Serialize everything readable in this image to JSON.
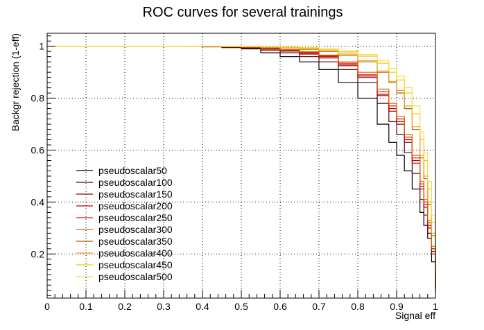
{
  "chart_data": {
    "type": "line",
    "title": "ROC curves for several trainings",
    "xlabel": "Signal eff",
    "ylabel": "Backgr rejection (1-eff)",
    "xlim": [
      0,
      1
    ],
    "ylim": [
      0.03,
      1.05
    ],
    "grid": true,
    "legend_position": "bottom-left",
    "x_ticks": [
      0,
      0.1,
      0.2,
      0.3,
      0.4,
      0.5,
      0.6,
      0.7,
      0.8,
      0.9,
      1
    ],
    "x_tick_labels": [
      "0",
      "0.1",
      "0.2",
      "0.3",
      "0.4",
      "0.5",
      "0.6",
      "0.7",
      "0.8",
      "0.9",
      "1"
    ],
    "y_ticks": [
      0.2,
      0.4,
      0.6,
      0.8,
      1
    ],
    "y_tick_labels": [
      "0.2",
      "0.4",
      "0.6",
      "0.8",
      "1"
    ],
    "x": [
      0.35,
      0.4,
      0.45,
      0.5,
      0.55,
      0.6,
      0.65,
      0.7,
      0.75,
      0.8,
      0.85,
      0.88,
      0.9,
      0.92,
      0.94,
      0.96,
      0.97,
      0.98,
      0.99,
      1.0
    ],
    "series": [
      {
        "name": "pseudoscalar50",
        "color": "#000000",
        "values": [
          1.0,
          0.998,
          0.995,
          0.99,
          0.975,
          0.96,
          0.94,
          0.91,
          0.86,
          0.8,
          0.7,
          0.63,
          0.58,
          0.52,
          0.45,
          0.36,
          0.31,
          0.26,
          0.17,
          0.05
        ]
      },
      {
        "name": "pseudoscalar100",
        "color": "#5a0000",
        "values": [
          1.0,
          0.999,
          0.997,
          0.993,
          0.985,
          0.975,
          0.96,
          0.94,
          0.91,
          0.86,
          0.78,
          0.71,
          0.66,
          0.59,
          0.51,
          0.41,
          0.35,
          0.28,
          0.2,
          0.06
        ]
      },
      {
        "name": "pseudoscalar150",
        "color": "#8c0000",
        "values": [
          1.0,
          0.999,
          0.998,
          0.995,
          0.989,
          0.981,
          0.97,
          0.955,
          0.925,
          0.88,
          0.81,
          0.75,
          0.7,
          0.63,
          0.55,
          0.45,
          0.38,
          0.3,
          0.21,
          0.07
        ]
      },
      {
        "name": "pseudoscalar200",
        "color": "#c00000",
        "values": [
          1.0,
          0.999,
          0.998,
          0.996,
          0.991,
          0.984,
          0.974,
          0.96,
          0.93,
          0.885,
          0.815,
          0.76,
          0.71,
          0.64,
          0.56,
          0.46,
          0.39,
          0.31,
          0.22,
          0.07
        ]
      },
      {
        "name": "pseudoscalar250",
        "color": "#e01a00",
        "values": [
          1.0,
          0.999,
          0.998,
          0.996,
          0.992,
          0.986,
          0.977,
          0.963,
          0.935,
          0.89,
          0.825,
          0.77,
          0.72,
          0.65,
          0.57,
          0.47,
          0.4,
          0.32,
          0.22,
          0.08
        ]
      },
      {
        "name": "pseudoscalar300",
        "color": "#e06000",
        "values": [
          1.0,
          0.999,
          0.998,
          0.997,
          0.993,
          0.987,
          0.979,
          0.966,
          0.94,
          0.9,
          0.835,
          0.78,
          0.73,
          0.66,
          0.58,
          0.48,
          0.41,
          0.33,
          0.23,
          0.08
        ]
      },
      {
        "name": "pseudoscalar350",
        "color": "#b06000",
        "values": [
          1.0,
          0.999,
          0.999,
          0.998,
          0.996,
          0.993,
          0.988,
          0.98,
          0.965,
          0.94,
          0.9,
          0.86,
          0.82,
          0.76,
          0.68,
          0.57,
          0.49,
          0.39,
          0.27,
          0.1
        ]
      },
      {
        "name": "pseudoscalar400",
        "color": "#f0a020",
        "values": [
          1.0,
          1.0,
          0.999,
          0.998,
          0.997,
          0.994,
          0.99,
          0.983,
          0.97,
          0.945,
          0.905,
          0.865,
          0.83,
          0.77,
          0.69,
          0.58,
          0.5,
          0.4,
          0.28,
          0.11
        ]
      },
      {
        "name": "pseudoscalar450",
        "color": "#f0c800",
        "values": [
          1.0,
          1.0,
          0.999,
          0.999,
          0.998,
          0.996,
          0.993,
          0.988,
          0.978,
          0.962,
          0.935,
          0.9,
          0.87,
          0.82,
          0.74,
          0.64,
          0.56,
          0.45,
          0.32,
          0.13
        ]
      },
      {
        "name": "pseudoscalar500",
        "color": "#f8dc40",
        "values": [
          1.0,
          1.0,
          1.0,
          0.999,
          0.998,
          0.997,
          0.995,
          0.99,
          0.982,
          0.968,
          0.945,
          0.915,
          0.885,
          0.84,
          0.77,
          0.67,
          0.59,
          0.48,
          0.35,
          0.15
        ]
      }
    ]
  }
}
